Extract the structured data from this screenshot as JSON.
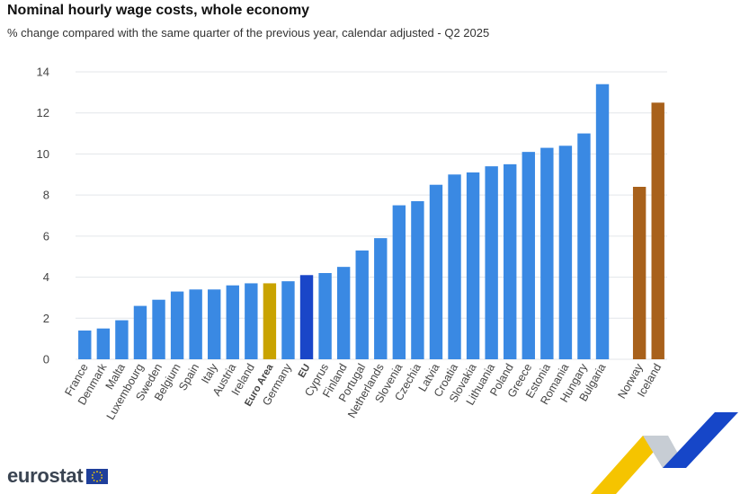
{
  "header": {
    "title": "Nominal hourly wage costs, whole economy",
    "subtitle": "% change compared with the same quarter of the previous year, calendar adjusted - Q2 2025"
  },
  "brand": {
    "logo_text": "eurostat"
  },
  "colors": {
    "member": "#3a89e3",
    "euro_area": "#c9a300",
    "eu": "#1a46c8",
    "efta": "#a8611b",
    "grid": "#e3e6ea",
    "label": "#444444"
  },
  "chart_data": {
    "type": "bar",
    "title": "Nominal hourly wage costs, whole economy",
    "subtitle": "% change compared with the same quarter of the previous year, calendar adjusted - Q2 2025",
    "xlabel": "",
    "ylabel": "",
    "ylim": [
      0,
      14
    ],
    "yticks": [
      0,
      2,
      4,
      6,
      8,
      10,
      12,
      14
    ],
    "grid": true,
    "legend": "none",
    "categories": [
      "France",
      "Denmark",
      "Malta",
      "Luxembourg",
      "Sweden",
      "Belgium",
      "Spain",
      "Italy",
      "Austria",
      "Ireland",
      "Euro Area",
      "Germany",
      "EU",
      "Cyprus",
      "Finland",
      "Portugal",
      "Netherlands",
      "Slovenia",
      "Czechia",
      "Latvia",
      "Croatia",
      "Slovakia",
      "Lithuania",
      "Poland",
      "Greece",
      "Estonia",
      "Romania",
      "Hungary",
      "Bulgaria",
      "",
      "Norway",
      "Iceland"
    ],
    "values": [
      1.4,
      1.5,
      1.9,
      2.6,
      2.9,
      3.3,
      3.4,
      3.4,
      3.6,
      3.7,
      3.7,
      3.8,
      4.1,
      4.2,
      4.5,
      5.3,
      5.9,
      7.5,
      7.7,
      8.5,
      9.0,
      9.1,
      9.4,
      9.5,
      10.1,
      10.3,
      10.4,
      11.0,
      13.4,
      null,
      8.4,
      12.5
    ],
    "groups": [
      "member",
      "member",
      "member",
      "member",
      "member",
      "member",
      "member",
      "member",
      "member",
      "member",
      "euro_area",
      "member",
      "eu",
      "member",
      "member",
      "member",
      "member",
      "member",
      "member",
      "member",
      "member",
      "member",
      "member",
      "member",
      "member",
      "member",
      "member",
      "member",
      "member",
      "gap",
      "efta",
      "efta"
    ],
    "bold_labels": [
      "Euro Area",
      "EU"
    ]
  }
}
